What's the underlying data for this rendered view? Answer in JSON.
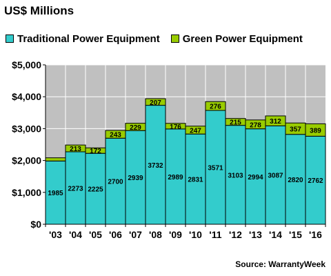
{
  "chart_data": {
    "type": "bar",
    "stacked": true,
    "title": "US$ Millions",
    "source": "Source: WarrantyWeek",
    "categories": [
      "'03",
      "'04",
      "'05",
      "'06",
      "'07",
      "'08",
      "'09",
      "'10",
      "'11",
      "'12",
      "'13",
      "'14",
      "'15",
      "'16"
    ],
    "series": [
      {
        "name": "Traditional Power Equipment",
        "color": "#33CCCC",
        "values": [
          1985,
          2273,
          2225,
          2700,
          2939,
          3732,
          2989,
          2831,
          3571,
          3103,
          2994,
          3087,
          2820,
          2762
        ],
        "labels": [
          "1985",
          "2273",
          "2225",
          "2700",
          "2939",
          "3732",
          "2989",
          "2831",
          "3571",
          "3103",
          "2994",
          "3087",
          "2820",
          "2762"
        ]
      },
      {
        "name": "Green Power Equipment",
        "color": "#99CC00",
        "values": [
          100,
          213,
          172,
          243,
          229,
          207,
          176,
          247,
          276,
          215,
          278,
          312,
          357,
          389
        ],
        "labels": [
          "",
          "213",
          "172",
          "243",
          "229",
          "207",
          "176",
          "247",
          "276",
          "215",
          "278",
          "312",
          "357",
          "389"
        ]
      }
    ],
    "ylim": [
      0,
      5000
    ],
    "yticks": [
      0,
      1000,
      2000,
      3000,
      4000,
      5000
    ],
    "ytick_labels": [
      "$0",
      "$1,000",
      "$2,000",
      "$3,000",
      "$4,000",
      "$5,000"
    ],
    "grid": true,
    "legend": "top",
    "plot_background": "#C0C0C0"
  }
}
